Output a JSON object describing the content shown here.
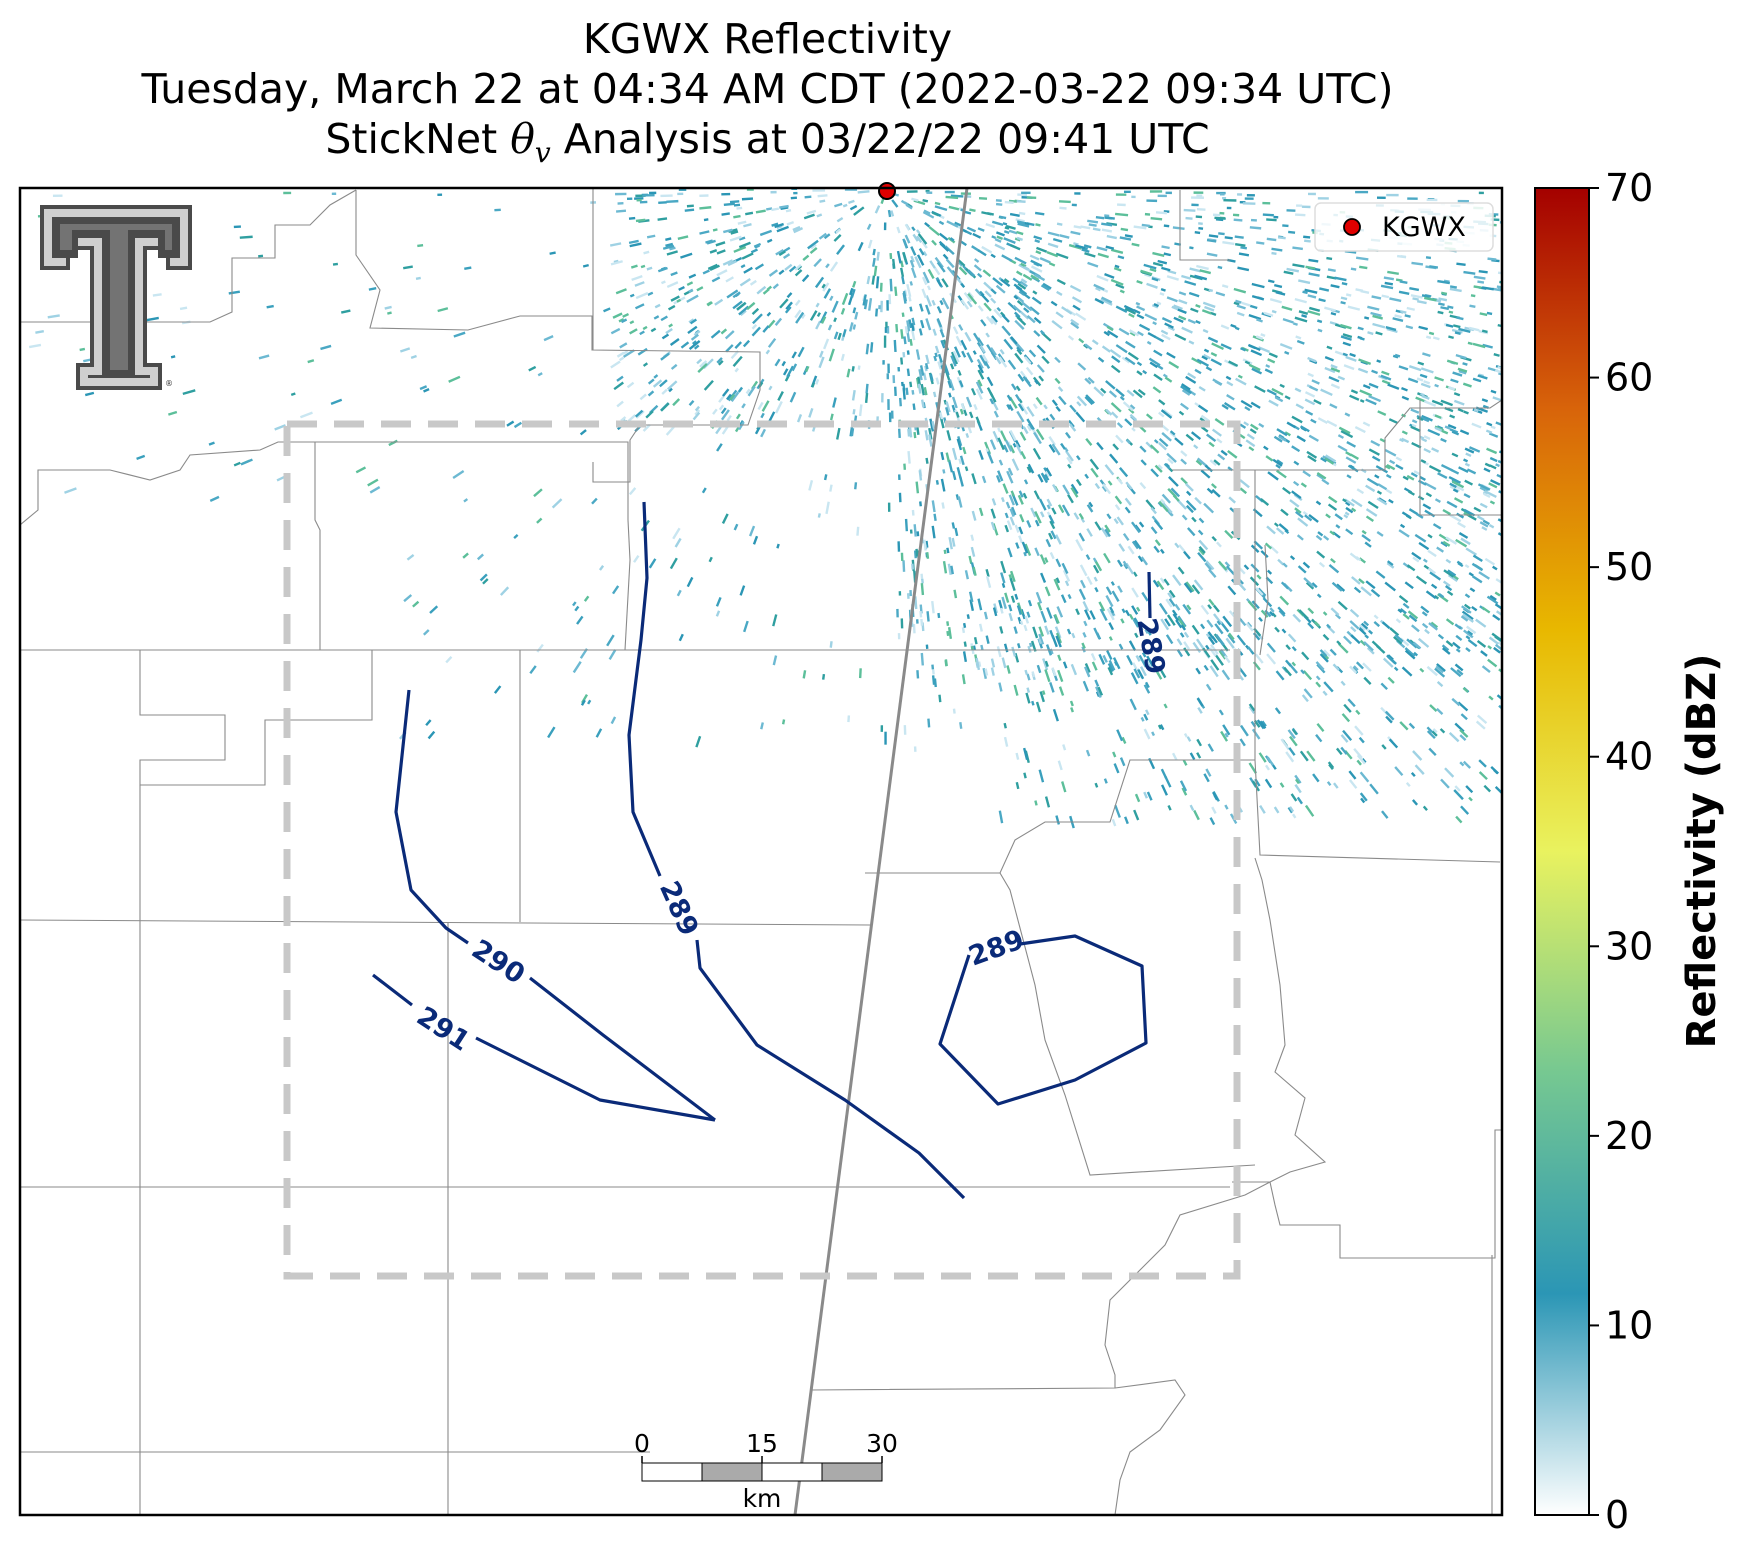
{
  "title": {
    "line1": "KGWX Reflectivity",
    "line2": "Tuesday, March 22 at 04:34 AM CDT (2022-03-22 09:34 UTC)",
    "line3_prefix": "StickNet ",
    "line3_symbol": "θ",
    "line3_subscript": "v",
    "line3_suffix": " Analysis at 03/22/22 09:41 UTC"
  },
  "legend": {
    "marker_color": "#e00000",
    "label": "KGWX"
  },
  "radar_site": {
    "name": "KGWX",
    "color": "#e00000"
  },
  "logo": {
    "text": "T",
    "colors": {
      "fill": "#4a4a4a",
      "outline": "#c8c8c8"
    }
  },
  "colorbar": {
    "label": "Reflectivity (dBZ)",
    "min": 0,
    "max": 70,
    "ticks": [
      "0",
      "10",
      "20",
      "30",
      "40",
      "50",
      "60",
      "70"
    ],
    "colors": [
      "#ffffff",
      "#2b96b5",
      "#76c891",
      "#e9f25f",
      "#e8b800",
      "#d8640a",
      "#a40000"
    ]
  },
  "contours": [
    {
      "value": 291,
      "label": "291",
      "color": "#0a2a78"
    },
    {
      "value": 290,
      "label": "290",
      "color": "#0a2a78"
    },
    {
      "value": 289,
      "label": "289",
      "color": "#0a2a78"
    },
    {
      "value": 289,
      "label": "289",
      "color": "#0a2a78"
    },
    {
      "value": 289,
      "label": "289",
      "color": "#0a2a78"
    }
  ],
  "scale_bar": {
    "ticks": [
      "0",
      "15",
      "30"
    ],
    "unit": "km"
  },
  "domain_box_color": "#c8c8c8"
}
